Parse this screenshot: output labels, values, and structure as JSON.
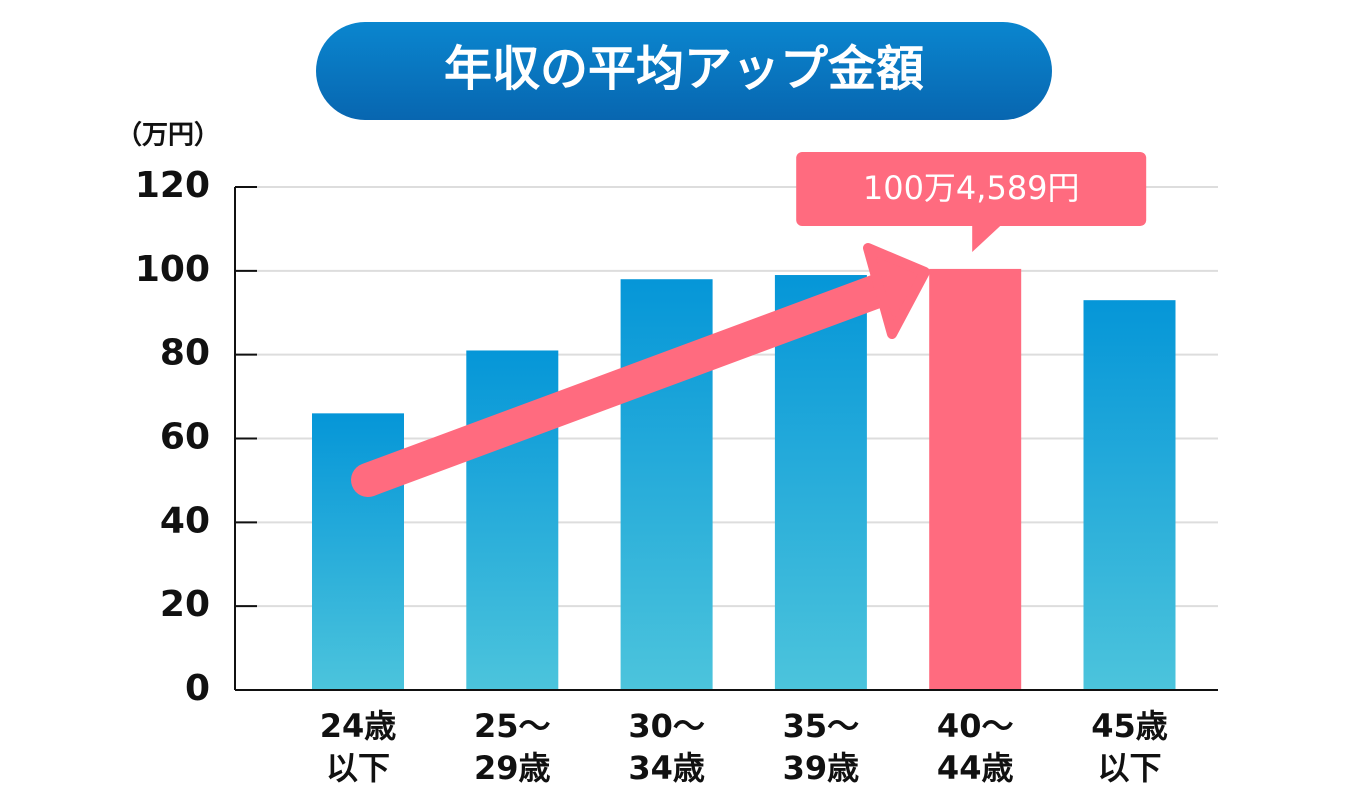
{
  "chart_data": {
    "type": "bar",
    "title": "年収の平均アップ金額",
    "y_label": "（万円）",
    "categories": [
      [
        "24歳",
        "以下"
      ],
      [
        "25～",
        "29歳"
      ],
      [
        "30～",
        "34歳"
      ],
      [
        "35～",
        "39歳"
      ],
      [
        "40～",
        "44歳"
      ],
      [
        "45歳",
        "以下"
      ]
    ],
    "values": [
      66,
      81,
      98,
      99,
      100.4589,
      93
    ],
    "value_labels": [
      null,
      null,
      null,
      null,
      "100万4,589円",
      null
    ],
    "colors": [
      [
        "#0596d8",
        "#4cc4dc"
      ],
      [
        "#0596d8",
        "#4cc4dc"
      ],
      [
        "#0596d8",
        "#4cc4dc"
      ],
      [
        "#0596d8",
        "#4cc4dc"
      ],
      "#ff6b7f",
      [
        "#0596d8",
        "#4cc4dc"
      ]
    ],
    "ylim": [
      0,
      120
    ],
    "yticks": [
      0,
      20,
      40,
      60,
      80,
      100,
      120
    ],
    "grid": true
  }
}
